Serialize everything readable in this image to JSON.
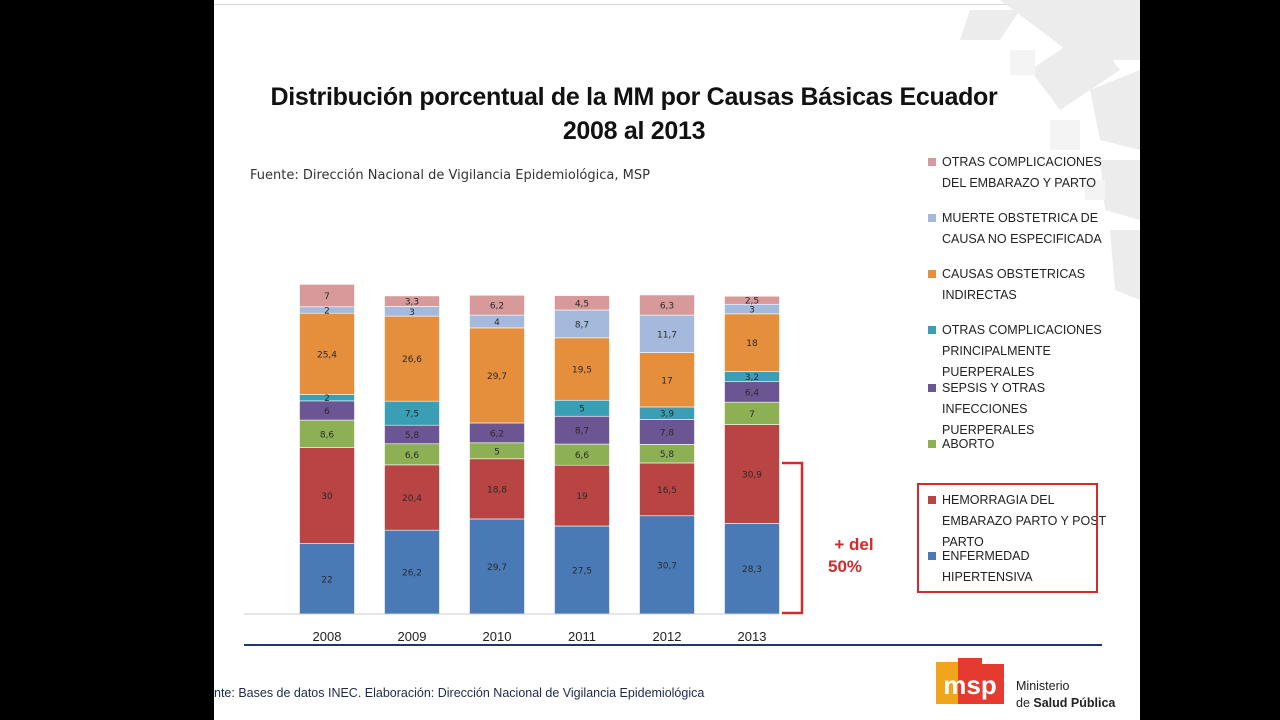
{
  "title_line1": "Distribución porcentual de la MM por Causas Básicas Ecuador",
  "title_line2": "2008 al 2013",
  "source": "Fuente: Dirección Nacional de Vigilancia Epidemiológica, MSP",
  "footer": "nte: Bases de datos INEC. Elaboración: Dirección Nacional de Vigilancia Epidemiológica",
  "annotation": {
    "line1": "+ del",
    "line2": "50%",
    "color": "#d42a2a"
  },
  "logo": {
    "mark": "msp",
    "line1": "Ministerio",
    "line2_prefix": "de ",
    "line2_bold": "Salud Pública"
  },
  "chart_data": {
    "type": "bar",
    "stacked": true,
    "title": "Distribución porcentual de la MM por Causas Básicas Ecuador 2008 al 2013",
    "categories": [
      "2008",
      "2009",
      "2010",
      "2011",
      "2012",
      "2013"
    ],
    "series": [
      {
        "name": "ENFERMEDAD HIPERTENSIVA",
        "color": "#4a7ab5",
        "values": [
          22,
          26.2,
          29.7,
          27.5,
          30.7,
          28.3
        ],
        "labels": [
          "22",
          "26,2",
          "29,7",
          "27,5",
          "30,7",
          "28,3"
        ]
      },
      {
        "name": "HEMORRAGIA DEL EMBARAZO PARTO Y POST PARTO",
        "color": "#b84444",
        "values": [
          30,
          20.4,
          18.8,
          19,
          16.5,
          30.9
        ],
        "labels": [
          "30",
          "20,4",
          "18,8",
          "19",
          "16,5",
          "30,9"
        ]
      },
      {
        "name": "ABORTO",
        "color": "#8eb054",
        "values": [
          8.6,
          6.6,
          5,
          6.6,
          5.8,
          7
        ],
        "labels": [
          "8,6",
          "6,6",
          "5",
          "6,6",
          "5,8",
          "7"
        ]
      },
      {
        "name": "SEPSIS Y OTRAS INFECCIONES PUERPERALES",
        "color": "#6b5592",
        "values": [
          6,
          5.8,
          6.2,
          8.7,
          7.8,
          6.4
        ],
        "labels": [
          "6",
          "5,8",
          "6,2",
          "8,7",
          "7,8",
          "6,4"
        ]
      },
      {
        "name": "OTRAS COMPLICACIONES PRINCIPALMENTE PUERPERALES",
        "color": "#3a9fb5",
        "values": [
          2,
          7.5,
          0,
          5,
          3.9,
          3.2
        ],
        "labels": [
          "2",
          "7,5",
          "",
          "5",
          "3,9",
          "3,2"
        ]
      },
      {
        "name": "CAUSAS OBSTETRICAS INDIRECTAS",
        "color": "#e58e3c",
        "values": [
          25.4,
          26.6,
          29.7,
          19.5,
          17,
          18
        ],
        "labels": [
          "25,4",
          "26,6",
          "29,7",
          "19,5",
          "17",
          "18"
        ]
      },
      {
        "name": "MUERTE OBSTETRICA DE CAUSA NO ESPECIFICADA",
        "color": "#a4b9dc",
        "values": [
          2,
          3,
          4,
          8.7,
          11.7,
          3
        ],
        "labels": [
          "2",
          "3",
          "4",
          "8,7",
          "11,7",
          "3"
        ]
      },
      {
        "name": "OTRAS COMPLICACIONES DEL EMBARAZO Y PARTO",
        "color": "#d7999a",
        "values": [
          7,
          3.3,
          6.2,
          4.5,
          6.3,
          2.5
        ],
        "labels": [
          "7",
          "3,3",
          "6,2",
          "4,5",
          "6,3",
          "2,5"
        ]
      }
    ],
    "ylim": [
      0,
      100
    ],
    "grid": false,
    "legend_position": "right"
  }
}
